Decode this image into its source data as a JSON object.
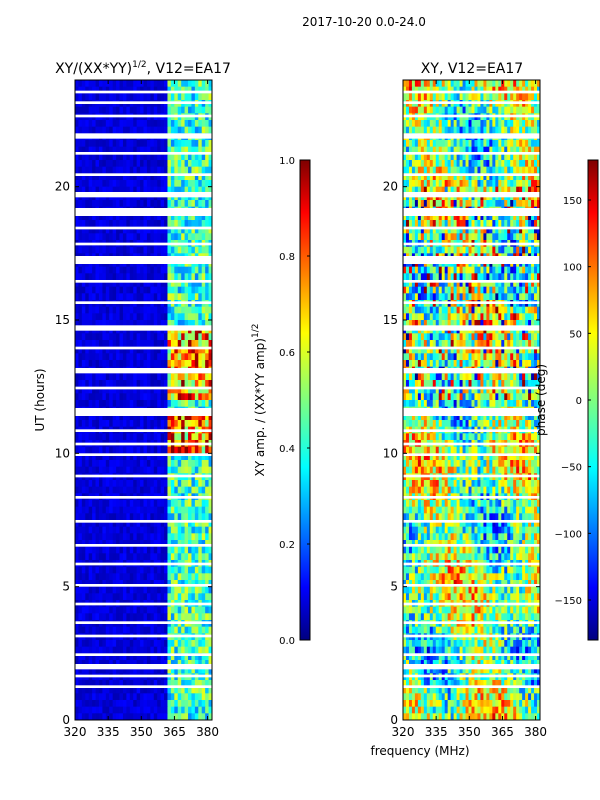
{
  "figure": {
    "suptitle": "2017-10-20 0.0-24.0",
    "xlabel_shared": "frequency (MHz)"
  },
  "chart_data": [
    {
      "type": "heatmap",
      "panel": "left",
      "title_text": "XY/(XX*YY)",
      "title_exponent": "1/2",
      "title_suffix": ", V12=EA17",
      "ylabel": "UT (hours)",
      "x_range": [
        320,
        382
      ],
      "y_range": [
        0,
        24
      ],
      "x_ticks": [
        320,
        335,
        350,
        365,
        380
      ],
      "y_ticks": [
        0,
        5,
        10,
        15,
        20
      ],
      "colorbar": {
        "label_text": "XY amp. / (XX*YY amp)",
        "label_exponent": "1/2",
        "range": [
          0.0,
          1.0
        ],
        "ticks": [
          "0.0",
          "0.2",
          "0.4",
          "0.6",
          "0.8",
          "1.0"
        ],
        "colormap": "jet"
      },
      "flagged_bands_hours": [
        [
          1.2,
          1.3
        ],
        [
          1.6,
          1.7
        ],
        [
          1.9,
          2.1
        ],
        [
          2.4,
          2.5
        ],
        [
          3.1,
          3.2
        ],
        [
          3.6,
          3.7
        ],
        [
          4.3,
          4.4
        ],
        [
          5.0,
          5.1
        ],
        [
          5.8,
          5.9
        ],
        [
          6.5,
          6.6
        ],
        [
          7.4,
          7.5
        ],
        [
          8.3,
          8.4
        ],
        [
          9.1,
          9.2
        ],
        [
          9.9,
          10.0
        ],
        [
          10.3,
          10.4
        ],
        [
          10.8,
          10.9
        ],
        [
          11.4,
          11.7
        ],
        [
          12.4,
          12.5
        ],
        [
          13.0,
          13.2
        ],
        [
          13.9,
          14.0
        ],
        [
          14.6,
          14.8
        ],
        [
          15.6,
          15.7
        ],
        [
          16.4,
          16.5
        ],
        [
          17.1,
          17.4
        ],
        [
          17.8,
          17.9
        ],
        [
          18.4,
          18.5
        ],
        [
          18.9,
          19.2
        ],
        [
          19.6,
          19.8
        ],
        [
          20.4,
          20.5
        ],
        [
          21.2,
          21.3
        ],
        [
          21.8,
          22.0
        ],
        [
          22.6,
          22.7
        ],
        [
          23.1,
          23.2
        ],
        [
          23.5,
          23.6
        ]
      ],
      "features": [
        {
          "description": "high-amplitude band",
          "x_range": [
            362,
            382
          ]
        },
        {
          "description": "low-amplitude region",
          "x_range": [
            320,
            362
          ]
        }
      ]
    },
    {
      "type": "heatmap",
      "panel": "right",
      "title_text": "XY, V12=EA17",
      "ylabel": "",
      "x_range": [
        320,
        382
      ],
      "y_range": [
        0,
        24
      ],
      "x_ticks": [
        320,
        335,
        350,
        365,
        380
      ],
      "y_ticks": [
        0,
        5,
        10,
        15,
        20
      ],
      "colorbar": {
        "label_text": "phase (deg)",
        "range": [
          -180,
          180
        ],
        "ticks": [
          "−150",
          "−100",
          "−50",
          "0",
          "50",
          "100",
          "150"
        ],
        "tick_values": [
          -150,
          -100,
          -50,
          0,
          50,
          100,
          150
        ],
        "colormap": "jet"
      },
      "flagged_bands_hours": [
        [
          1.2,
          1.3
        ],
        [
          1.6,
          1.7
        ],
        [
          1.9,
          2.1
        ],
        [
          2.4,
          2.5
        ],
        [
          3.1,
          3.2
        ],
        [
          3.6,
          3.7
        ],
        [
          4.3,
          4.4
        ],
        [
          5.0,
          5.1
        ],
        [
          5.8,
          5.9
        ],
        [
          6.5,
          6.6
        ],
        [
          7.4,
          7.5
        ],
        [
          8.3,
          8.4
        ],
        [
          9.1,
          9.2
        ],
        [
          9.9,
          10.0
        ],
        [
          10.3,
          10.4
        ],
        [
          10.8,
          10.9
        ],
        [
          11.4,
          11.7
        ],
        [
          12.4,
          12.5
        ],
        [
          13.0,
          13.2
        ],
        [
          13.9,
          14.0
        ],
        [
          14.6,
          14.8
        ],
        [
          15.6,
          15.7
        ],
        [
          16.4,
          16.5
        ],
        [
          17.1,
          17.4
        ],
        [
          17.8,
          17.9
        ],
        [
          18.4,
          18.5
        ],
        [
          18.9,
          19.2
        ],
        [
          19.6,
          19.8
        ],
        [
          20.4,
          20.5
        ],
        [
          21.2,
          21.3
        ],
        [
          21.8,
          22.0
        ],
        [
          22.6,
          22.7
        ],
        [
          23.1,
          23.2
        ],
        [
          23.5,
          23.6
        ]
      ]
    }
  ],
  "colors": {
    "jet_stops": [
      "#00007f",
      "#0000ff",
      "#007fff",
      "#00ffff",
      "#7fff7f",
      "#ffff00",
      "#ff7f00",
      "#ff0000",
      "#7f0000"
    ]
  }
}
